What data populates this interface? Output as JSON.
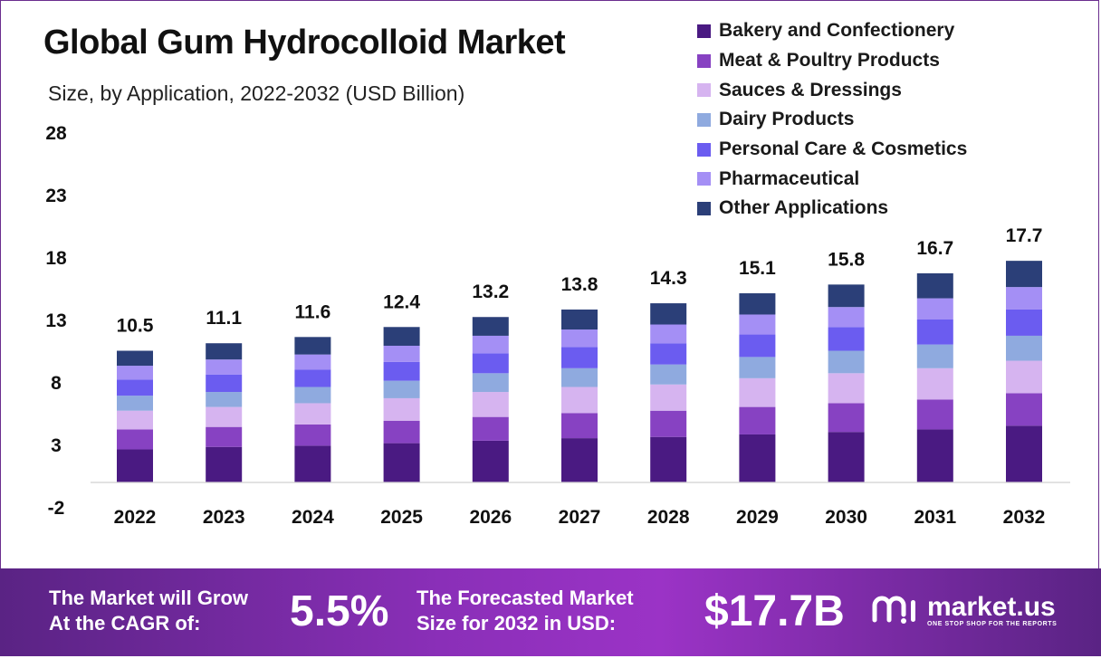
{
  "chart_data": {
    "type": "bar",
    "stacked": true,
    "title": "Global Gum Hydrocolloid  Market",
    "subtitle": "Size, by Application, 2022-2032 (USD Billion)",
    "categories": [
      "2022",
      "2023",
      "2024",
      "2025",
      "2026",
      "2027",
      "2028",
      "2029",
      "2030",
      "2031",
      "2032"
    ],
    "totals": [
      10.5,
      11.1,
      11.6,
      12.4,
      13.2,
      13.8,
      14.3,
      15.1,
      15.8,
      16.7,
      17.7
    ],
    "total_labels": [
      "10.5",
      "11.1",
      "11.6",
      "12.4",
      "13.2",
      "13.8",
      "14.3",
      "15.1",
      "15.8",
      "16.7",
      "17.7"
    ],
    "yticks": [
      "28",
      "23",
      "18",
      "13",
      "8",
      "3",
      "-2"
    ],
    "ytick_values": [
      28,
      23,
      18,
      13,
      8,
      3,
      -2
    ],
    "ylim": [
      -2,
      28
    ],
    "series": [
      {
        "name": "Bakery and Confectionery",
        "color": "#4a1a82",
        "values": [
          2.6,
          2.8,
          2.9,
          3.1,
          3.3,
          3.5,
          3.6,
          3.8,
          4.0,
          4.2,
          4.5
        ]
      },
      {
        "name": "Meat & Poultry Products",
        "color": "#8742c2",
        "values": [
          1.6,
          1.6,
          1.7,
          1.8,
          1.9,
          2.0,
          2.1,
          2.2,
          2.3,
          2.4,
          2.6
        ]
      },
      {
        "name": "Sauces & Dressings",
        "color": "#d6b4f0",
        "values": [
          1.5,
          1.6,
          1.7,
          1.8,
          2.0,
          2.1,
          2.1,
          2.3,
          2.4,
          2.5,
          2.6
        ]
      },
      {
        "name": "Dairy Products",
        "color": "#8faadf",
        "values": [
          1.2,
          1.2,
          1.3,
          1.4,
          1.5,
          1.5,
          1.6,
          1.7,
          1.8,
          1.9,
          2.0
        ]
      },
      {
        "name": "Personal Care & Cosmetics",
        "color": "#6b5cf0",
        "values": [
          1.3,
          1.4,
          1.4,
          1.5,
          1.6,
          1.7,
          1.7,
          1.8,
          1.9,
          2.0,
          2.1
        ]
      },
      {
        "name": "Pharmaceutical",
        "color": "#a48ff5",
        "values": [
          1.1,
          1.2,
          1.2,
          1.3,
          1.4,
          1.4,
          1.5,
          1.6,
          1.6,
          1.7,
          1.8
        ]
      },
      {
        "name": "Other Applications",
        "color": "#2b3f78",
        "values": [
          1.2,
          1.3,
          1.4,
          1.5,
          1.5,
          1.6,
          1.7,
          1.7,
          1.8,
          2.0,
          2.1
        ]
      }
    ]
  },
  "footer": {
    "grow_line1": "The Market will Grow",
    "grow_line2": "At the CAGR of:",
    "cagr": "5.5%",
    "forecast_line1": "The Forecasted Market",
    "forecast_line2": "Size for 2032 in USD:",
    "forecast_value": "$17.7B",
    "brand_name": "market.us",
    "brand_tagline": "ONE STOP SHOP FOR THE REPORTS"
  }
}
